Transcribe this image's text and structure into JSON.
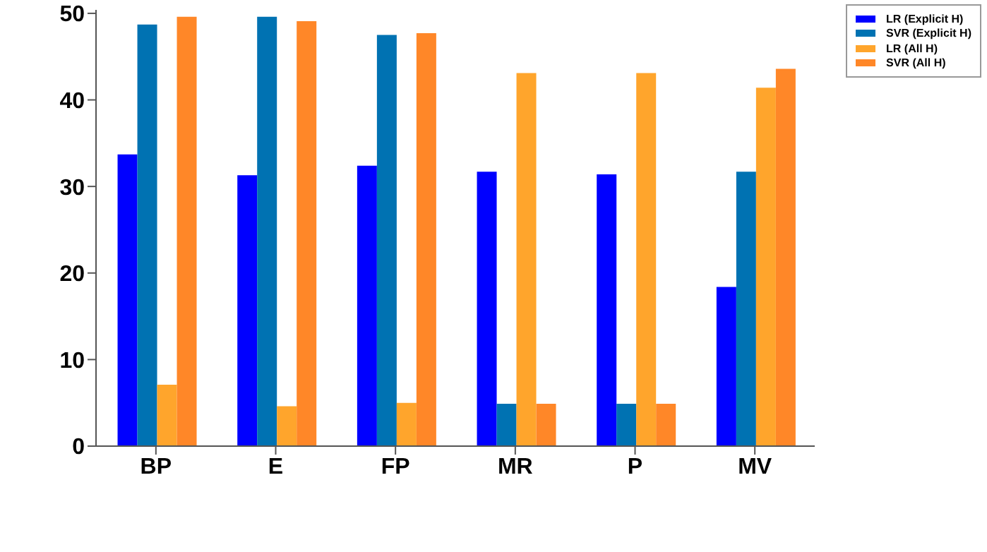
{
  "chart_data": {
    "type": "bar",
    "categories": [
      "BP",
      "E",
      "FP",
      "MR",
      "P",
      "MV"
    ],
    "series": [
      {
        "name": "LR (Explicit H)",
        "color": "#0000ff",
        "values": [
          33.7,
          31.3,
          32.4,
          31.7,
          31.4,
          18.4
        ]
      },
      {
        "name": "SVR (Explicit H)",
        "color": "#0072b2",
        "values": [
          48.7,
          49.6,
          47.5,
          4.9,
          4.9,
          31.7
        ]
      },
      {
        "name": "LR (All H)",
        "color": "#ffa52c",
        "values": [
          7.1,
          4.6,
          5.0,
          43.1,
          43.1,
          41.4
        ]
      },
      {
        "name": "SVR (All H)",
        "color": "#ff8728",
        "values": [
          49.6,
          49.1,
          47.7,
          4.9,
          4.9,
          43.6
        ]
      }
    ],
    "ylim": [
      0,
      50.4
    ],
    "yticks": [
      0,
      10,
      20,
      30,
      40,
      50
    ],
    "grid": false,
    "legend": "top right"
  }
}
